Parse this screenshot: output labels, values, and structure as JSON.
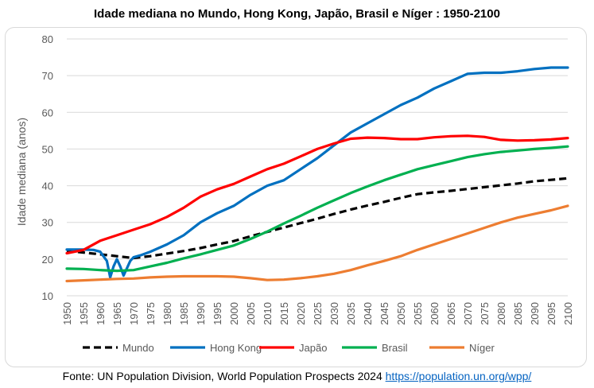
{
  "chart_data": {
    "type": "line",
    "title": "Idade mediana no Mundo, Hong Kong, Japão, Brasil e Níger : 1950-2100",
    "xlabel": "",
    "ylabel": "Idade mediana (anos)",
    "ylim": [
      10,
      80
    ],
    "yticks": [
      "10",
      "20",
      "30",
      "40",
      "50",
      "60",
      "70",
      "80"
    ],
    "xlim": [
      1950,
      2100
    ],
    "xticks": [
      "1950",
      "1955",
      "1960",
      "1965",
      "1970",
      "1975",
      "1980",
      "1985",
      "1990",
      "1995",
      "2000",
      "2005",
      "2010",
      "2015",
      "2020",
      "2025",
      "2030",
      "2035",
      "2040",
      "2045",
      "2050",
      "2055",
      "2060",
      "2065",
      "2070",
      "2075",
      "2080",
      "2085",
      "2090",
      "2095",
      "2100"
    ],
    "grid": true,
    "legend_position": "bottom",
    "series": [
      {
        "name": "Mundo",
        "color": "#000000",
        "dash": true,
        "x": [
          1950,
          1955,
          1960,
          1965,
          1970,
          1975,
          1980,
          1985,
          1990,
          1995,
          2000,
          2005,
          2010,
          2015,
          2020,
          2025,
          2030,
          2035,
          2040,
          2045,
          2050,
          2055,
          2060,
          2065,
          2070,
          2075,
          2080,
          2085,
          2090,
          2095,
          2100
        ],
        "y": [
          22.2,
          21.8,
          21.3,
          20.8,
          20.3,
          20.8,
          21.5,
          22.2,
          23.0,
          24.0,
          24.9,
          26.2,
          27.4,
          28.6,
          29.8,
          31.0,
          32.3,
          33.5,
          34.6,
          35.6,
          36.7,
          37.7,
          38.2,
          38.6,
          39.1,
          39.6,
          40.1,
          40.6,
          41.2,
          41.6,
          42.0
        ]
      },
      {
        "name": "Hong Kong",
        "color": "#0070c0",
        "dash": false,
        "x": [
          1950,
          1955,
          1958,
          1960,
          1962,
          1963,
          1964,
          1965,
          1966,
          1967,
          1968,
          1969,
          1970,
          1972,
          1975,
          1980,
          1985,
          1990,
          1995,
          2000,
          2005,
          2010,
          2015,
          2020,
          2025,
          2030,
          2035,
          2040,
          2045,
          2050,
          2055,
          2060,
          2065,
          2070,
          2075,
          2080,
          2085,
          2090,
          2095,
          2100
        ],
        "y": [
          22.6,
          22.6,
          22.5,
          22.0,
          19.5,
          15.0,
          18.0,
          20.0,
          18.0,
          15.5,
          17.5,
          19.5,
          20.5,
          21.0,
          22.0,
          24.0,
          26.5,
          30.0,
          32.5,
          34.5,
          37.5,
          40.0,
          41.5,
          44.5,
          47.5,
          51.0,
          54.5,
          57.0,
          59.5,
          62.0,
          64.0,
          66.5,
          68.5,
          70.5,
          70.8,
          70.8,
          71.2,
          71.8,
          72.2,
          72.2
        ]
      },
      {
        "name": "Japão",
        "color": "#ff0000",
        "dash": false,
        "x": [
          1950,
          1955,
          1960,
          1965,
          1970,
          1975,
          1980,
          1985,
          1990,
          1995,
          2000,
          2005,
          2010,
          2015,
          2020,
          2025,
          2030,
          2035,
          2040,
          2045,
          2050,
          2055,
          2060,
          2065,
          2070,
          2075,
          2080,
          2085,
          2090,
          2095,
          2100
        ],
        "y": [
          21.6,
          22.5,
          25.0,
          26.5,
          28.0,
          29.5,
          31.5,
          34.0,
          37.0,
          39.0,
          40.5,
          42.5,
          44.5,
          46.0,
          48.0,
          50.0,
          51.5,
          52.8,
          53.1,
          53.0,
          52.7,
          52.7,
          53.2,
          53.5,
          53.6,
          53.3,
          52.5,
          52.3,
          52.4,
          52.6,
          53.0
        ]
      },
      {
        "name": "Brasil",
        "color": "#00b050",
        "dash": false,
        "x": [
          1950,
          1955,
          1960,
          1965,
          1970,
          1975,
          1980,
          1985,
          1990,
          1995,
          2000,
          2005,
          2010,
          2015,
          2020,
          2025,
          2030,
          2035,
          2040,
          2045,
          2050,
          2055,
          2060,
          2065,
          2070,
          2075,
          2080,
          2085,
          2090,
          2095,
          2100
        ],
        "y": [
          17.4,
          17.3,
          17.0,
          16.8,
          17.0,
          18.0,
          19.0,
          20.2,
          21.3,
          22.5,
          23.7,
          25.5,
          27.5,
          29.7,
          31.8,
          34.0,
          36.0,
          38.0,
          39.8,
          41.5,
          43.0,
          44.5,
          45.6,
          46.7,
          47.8,
          48.6,
          49.2,
          49.6,
          50.0,
          50.3,
          50.7
        ]
      },
      {
        "name": "Níger",
        "color": "#ed7d31",
        "dash": false,
        "x": [
          1950,
          1955,
          1960,
          1965,
          1970,
          1975,
          1980,
          1985,
          1990,
          1995,
          2000,
          2005,
          2010,
          2015,
          2020,
          2025,
          2030,
          2035,
          2040,
          2045,
          2050,
          2055,
          2060,
          2065,
          2070,
          2075,
          2080,
          2085,
          2090,
          2095,
          2100
        ],
        "y": [
          14.0,
          14.2,
          14.4,
          14.6,
          14.7,
          15.0,
          15.2,
          15.3,
          15.3,
          15.3,
          15.2,
          14.8,
          14.3,
          14.4,
          14.8,
          15.3,
          16.0,
          17.0,
          18.3,
          19.5,
          20.8,
          22.5,
          24.0,
          25.5,
          27.0,
          28.5,
          30.0,
          31.3,
          32.3,
          33.3,
          34.5
        ]
      }
    ]
  },
  "source": {
    "text": "Fonte: UN Population Division, World Population Prospects 2024",
    "link": "https://population.un.org/wpp/"
  }
}
